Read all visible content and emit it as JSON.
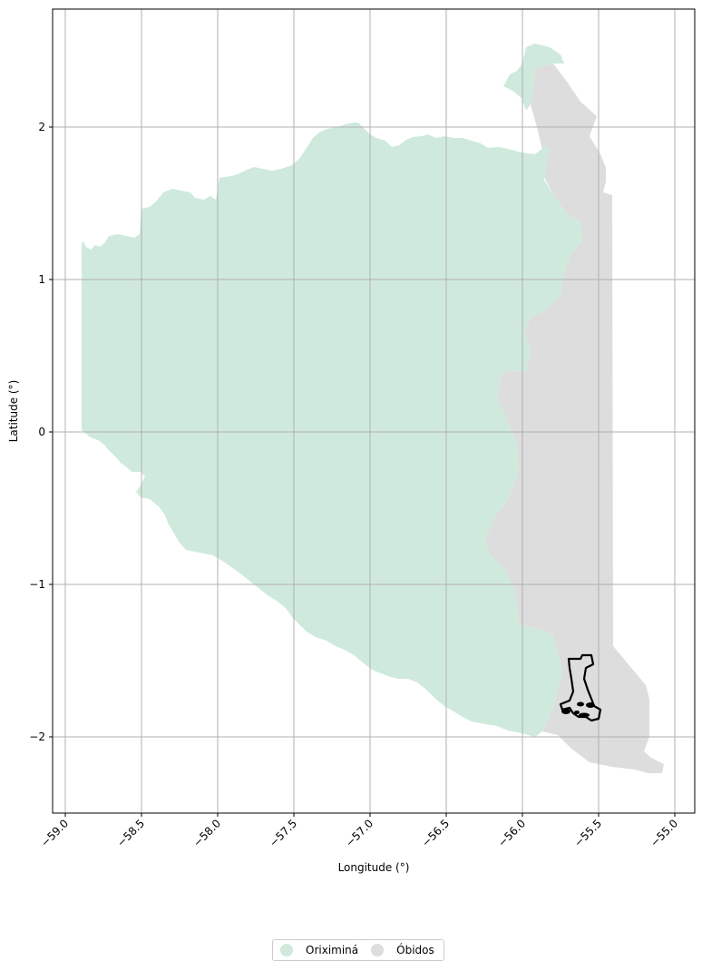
{
  "map": {
    "xlabel": "Longitude (°)",
    "ylabel": "Latitude (°)",
    "x_ticks": [
      "−59.0",
      "−58.5",
      "−58.0",
      "−57.5",
      "−57.0",
      "−56.5",
      "−56.0",
      "−55.5",
      "−55.0"
    ],
    "y_ticks": [
      "2",
      "1",
      "0",
      "−1",
      "−2"
    ],
    "grid": true,
    "regions": [
      {
        "name": "Oriximiná",
        "color": "#cfeadd"
      },
      {
        "name": "Óbidos",
        "color": "#dddddd"
      }
    ],
    "highlight_outline_color": "#000000"
  },
  "legend": {
    "placement": "bottom-center",
    "items": [
      {
        "label": "Oriximiná",
        "color": "#cfeadd"
      },
      {
        "label": "Óbidos",
        "color": "#dddddd"
      }
    ]
  }
}
